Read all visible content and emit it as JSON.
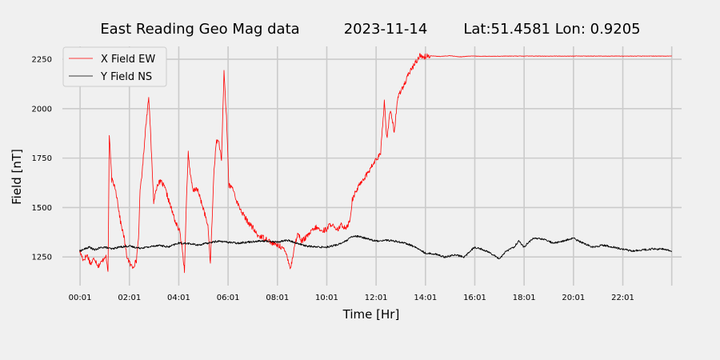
{
  "chart_data": {
    "type": "line",
    "title_parts": [
      "East Reading Geo Mag data",
      "2023-11-14",
      "Lat:51.4581  Lon: 0.9205"
    ],
    "xlabel": "Time  [Hr]",
    "ylabel": "Field  [nT]",
    "xlim": [
      -0.7,
      24.4
    ],
    "ylim": [
      1105,
      2315
    ],
    "x_ticks": [
      0.0167,
      2.0167,
      4.0167,
      6.0167,
      8.0167,
      10.0167,
      12.0167,
      14.0167,
      16.0167,
      18.0167,
      20.0167,
      22.0167
    ],
    "x_tick_labels": [
      "00:01",
      "02:01",
      "04:01",
      "06:01",
      "08:01",
      "10:01",
      "12:01",
      "14:01",
      "16:01",
      "18:01",
      "20:01",
      "22:01"
    ],
    "extra_x_grid": [
      24.0
    ],
    "y_ticks": [
      1250,
      1500,
      1750,
      2000,
      2250
    ],
    "y_tick_labels": [
      "1250",
      "1500",
      "1750",
      "2000",
      "2250"
    ],
    "grid": true,
    "legend_position": "top-left",
    "series": [
      {
        "name": "X Field EW",
        "color": "#ff0000",
        "x": [
          0.0,
          0.15,
          0.3,
          0.45,
          0.6,
          0.75,
          0.9,
          1.05,
          1.15,
          1.2,
          1.3,
          1.45,
          1.55,
          1.65,
          1.8,
          1.9,
          2.05,
          2.15,
          2.3,
          2.4,
          2.45,
          2.55,
          2.65,
          2.8,
          3.0,
          3.15,
          3.3,
          3.45,
          3.6,
          3.75,
          3.9,
          4.05,
          4.15,
          4.25,
          4.3,
          4.4,
          4.5,
          4.6,
          4.75,
          4.9,
          5.05,
          5.2,
          5.3,
          5.45,
          5.55,
          5.65,
          5.75,
          5.85,
          5.95,
          6.05,
          6.2,
          6.4,
          6.6,
          6.8,
          7.0,
          7.2,
          7.4,
          7.6,
          7.8,
          8.0,
          8.2,
          8.4,
          8.55,
          8.7,
          8.85,
          9.0,
          9.2,
          9.4,
          9.6,
          9.8,
          10.0,
          10.2,
          10.4,
          10.6,
          10.8,
          10.95,
          11.05,
          11.2,
          11.4,
          11.6,
          11.8,
          12.0,
          12.2,
          12.35,
          12.45,
          12.6,
          12.75,
          12.9,
          13.05,
          13.2,
          13.35,
          13.5,
          13.65,
          13.8,
          13.95,
          14.2,
          14.6,
          15.0,
          15.4,
          15.8,
          16.5,
          17.5,
          18.5,
          19.5,
          20.5,
          21.5,
          22.5,
          23.5,
          24.0
        ],
        "y": [
          1280,
          1235,
          1260,
          1215,
          1245,
          1205,
          1225,
          1260,
          1175,
          1870,
          1640,
          1600,
          1520,
          1430,
          1350,
          1260,
          1210,
          1200,
          1230,
          1380,
          1590,
          1700,
          1870,
          2070,
          1530,
          1620,
          1630,
          1600,
          1540,
          1480,
          1420,
          1380,
          1300,
          1180,
          1430,
          1780,
          1650,
          1580,
          1600,
          1540,
          1480,
          1400,
          1220,
          1700,
          1840,
          1830,
          1730,
          2190,
          1960,
          1610,
          1600,
          1520,
          1470,
          1430,
          1400,
          1360,
          1350,
          1340,
          1320,
          1310,
          1300,
          1260,
          1190,
          1300,
          1370,
          1330,
          1350,
          1380,
          1400,
          1380,
          1390,
          1420,
          1380,
          1410,
          1400,
          1430,
          1540,
          1580,
          1630,
          1660,
          1700,
          1740,
          1770,
          2040,
          1850,
          2000,
          1880,
          2060,
          2100,
          2130,
          2180,
          2210,
          2240,
          2270,
          2262,
          2268,
          2264,
          2268,
          2262,
          2266,
          2265,
          2266,
          2266,
          2266,
          2266,
          2266,
          2266,
          2266,
          2266
        ]
      },
      {
        "name": "Y Field NS",
        "color": "#000000",
        "x": [
          0.0,
          0.2,
          0.4,
          0.6,
          0.8,
          1.0,
          1.3,
          1.6,
          2.0,
          2.4,
          2.8,
          3.2,
          3.6,
          4.0,
          4.4,
          4.8,
          5.2,
          5.6,
          6.0,
          6.4,
          6.8,
          7.2,
          7.6,
          8.0,
          8.4,
          8.8,
          9.2,
          9.6,
          10.0,
          10.4,
          10.8,
          11.0,
          11.2,
          11.6,
          12.0,
          12.4,
          12.8,
          13.2,
          13.6,
          14.0,
          14.4,
          14.8,
          15.2,
          15.6,
          16.0,
          16.4,
          16.8,
          17.0,
          17.3,
          17.6,
          17.8,
          18.0,
          18.4,
          18.8,
          19.2,
          19.6,
          20.0,
          20.4,
          20.8,
          21.2,
          21.6,
          22.0,
          22.4,
          22.8,
          23.2,
          23.6,
          24.0
        ],
        "y": [
          1280,
          1290,
          1300,
          1285,
          1295,
          1300,
          1290,
          1300,
          1305,
          1295,
          1300,
          1310,
          1300,
          1320,
          1318,
          1310,
          1320,
          1330,
          1325,
          1320,
          1325,
          1330,
          1330,
          1325,
          1335,
          1320,
          1305,
          1300,
          1300,
          1310,
          1330,
          1350,
          1355,
          1345,
          1330,
          1335,
          1330,
          1320,
          1300,
          1270,
          1265,
          1250,
          1260,
          1250,
          1300,
          1285,
          1260,
          1240,
          1280,
          1300,
          1330,
          1300,
          1345,
          1340,
          1320,
          1330,
          1345,
          1320,
          1300,
          1310,
          1300,
          1290,
          1280,
          1285,
          1290,
          1290,
          1280
        ]
      }
    ]
  }
}
